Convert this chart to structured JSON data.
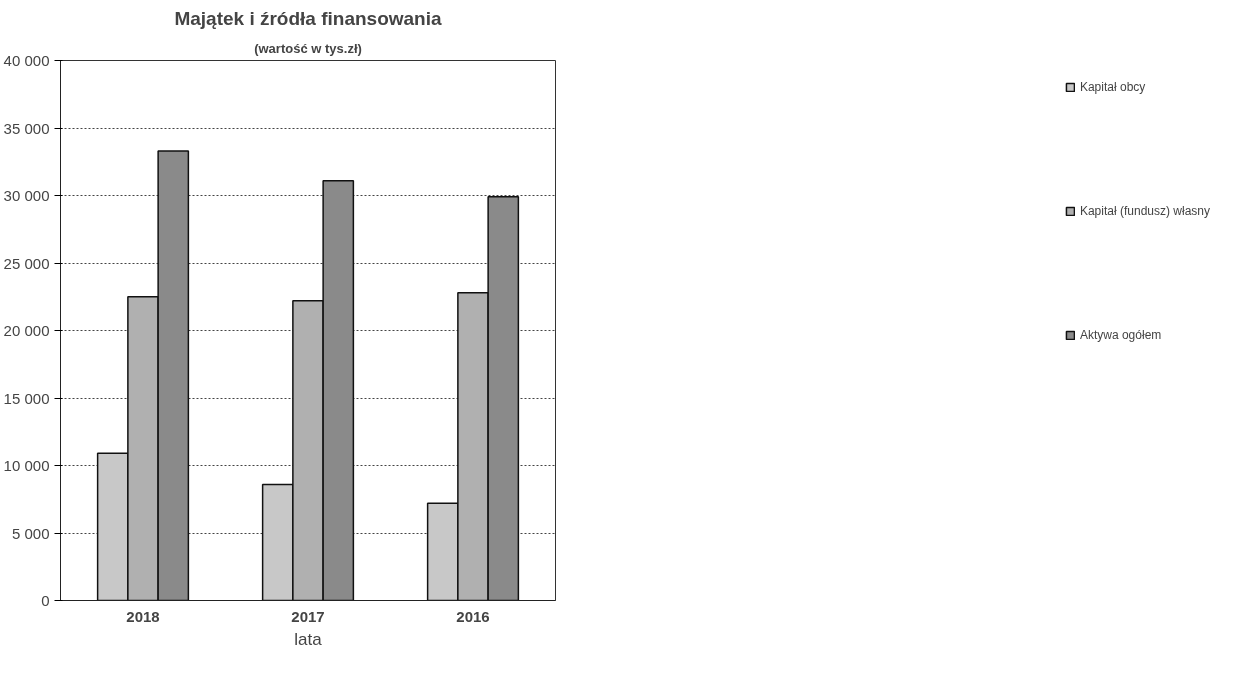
{
  "chart_data": {
    "type": "bar",
    "title": "Majątek i źródła finansowania",
    "subtitle": "(wartość w tys.zł)",
    "xlabel": "lata",
    "categories": [
      "2018",
      "2017",
      "2016"
    ],
    "series": [
      {
        "name": "Kapitał obcy",
        "color": "#c8c8c8",
        "values": [
          10900,
          8600,
          7200
        ]
      },
      {
        "name": "Kapitał (fundusz) własny",
        "color": "#b0b0b0",
        "values": [
          22500,
          22200,
          22800
        ]
      },
      {
        "name": "Aktywa ogółem",
        "color": "#8a8a8a",
        "values": [
          33300,
          31100,
          29900
        ]
      }
    ],
    "ylim": [
      0,
      40000
    ],
    "yticks": [
      {
        "value": 0,
        "label": "0"
      },
      {
        "value": 5000,
        "label": "5 000"
      },
      {
        "value": 10000,
        "label": "10 000"
      },
      {
        "value": 15000,
        "label": "15 000"
      },
      {
        "value": 20000,
        "label": "20 000"
      },
      {
        "value": 25000,
        "label": "25 000"
      },
      {
        "value": 30000,
        "label": "30 000"
      },
      {
        "value": 35000,
        "label": "35 000"
      },
      {
        "value": 40000,
        "label": "40 000"
      }
    ],
    "grid": "y",
    "legend": "right"
  }
}
